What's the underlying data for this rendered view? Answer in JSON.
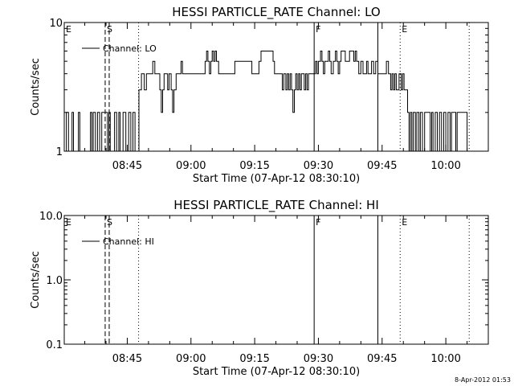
{
  "footer": {
    "timestamp": "8-Apr-2012 01:53"
  },
  "chart_data": [
    {
      "type": "line",
      "title": "HESSI PARTICLE_RATE Channel: LO",
      "xlabel": "Start Time (07-Apr-12 08:30:10)",
      "ylabel": "Counts/sec",
      "yscale": "log",
      "ylim": [
        1,
        10
      ],
      "xlim": [
        "08:30:10",
        "10:10:00"
      ],
      "y_ticks": [
        "1",
        "10"
      ],
      "x_ticks": [
        "08:45",
        "09:00",
        "09:15",
        "09:30",
        "09:45",
        "10:00"
      ],
      "legend": {
        "position": "top-left",
        "entries": [
          "Channel: LO"
        ]
      },
      "markers": [
        {
          "label": "E",
          "time": "08:30:10",
          "style": "solid"
        },
        {
          "label": "S",
          "time": "08:39:48",
          "style": "dashed"
        },
        {
          "label": "",
          "time": "08:40:45",
          "style": "dashed"
        },
        {
          "label": "",
          "time": "08:47:40",
          "style": "dotted"
        },
        {
          "label": "F",
          "time": "09:29:00",
          "style": "solid"
        },
        {
          "label": "",
          "time": "09:44:00",
          "style": "solid"
        },
        {
          "label": "E",
          "time": "09:49:15",
          "style": "dotted"
        },
        {
          "label": "",
          "time": "10:05:30",
          "style": "dotted"
        }
      ],
      "series": [
        {
          "name": "Channel: LO",
          "points": [
            [
              "08:30:10",
              1
            ],
            [
              "08:30:40",
              2
            ],
            [
              "08:31:10",
              1
            ],
            [
              "08:32:00",
              2
            ],
            [
              "08:32:20",
              1
            ],
            [
              "08:33:30",
              2
            ],
            [
              "08:33:50",
              1
            ],
            [
              "08:36:20",
              2
            ],
            [
              "08:36:40",
              1
            ],
            [
              "08:37:00",
              2
            ],
            [
              "08:37:30",
              1
            ],
            [
              "08:38:00",
              2
            ],
            [
              "08:38:30",
              1
            ],
            [
              "08:39:00",
              2
            ],
            [
              "08:40:00",
              2
            ],
            [
              "08:40:20",
              1
            ],
            [
              "08:40:40",
              2
            ],
            [
              "08:41:00",
              1
            ],
            [
              "08:41:40",
              1
            ],
            [
              "08:42:00",
              2
            ],
            [
              "08:42:30",
              1
            ],
            [
              "08:43:00",
              2
            ],
            [
              "08:43:20",
              1
            ],
            [
              "08:44:00",
              2
            ],
            [
              "08:44:40",
              1
            ],
            [
              "08:45:20",
              2
            ],
            [
              "08:45:50",
              1
            ],
            [
              "08:46:20",
              2
            ],
            [
              "08:46:50",
              1
            ],
            [
              "08:47:40",
              1
            ],
            [
              "08:47:45",
              3
            ],
            [
              "08:48:10",
              3
            ],
            [
              "08:48:20",
              4
            ],
            [
              "08:48:50",
              4
            ],
            [
              "08:49:00",
              3
            ],
            [
              "08:49:30",
              4
            ],
            [
              "08:50:30",
              4
            ],
            [
              "08:51:00",
              5
            ],
            [
              "08:51:30",
              4
            ],
            [
              "08:52:20",
              4
            ],
            [
              "08:52:40",
              3
            ],
            [
              "08:53:00",
              2
            ],
            [
              "08:53:20",
              3
            ],
            [
              "08:53:40",
              4
            ],
            [
              "08:54:30",
              3
            ],
            [
              "08:54:50",
              4
            ],
            [
              "08:55:20",
              3
            ],
            [
              "08:55:40",
              2
            ],
            [
              "08:56:00",
              3
            ],
            [
              "08:56:30",
              4
            ],
            [
              "08:57:20",
              4
            ],
            [
              "08:57:40",
              5
            ],
            [
              "08:58:00",
              4
            ],
            [
              "08:58:20",
              4
            ],
            [
              "08:59:30",
              4
            ],
            [
              "09:00:00",
              4
            ],
            [
              "09:03:00",
              4
            ],
            [
              "09:03:20",
              5
            ],
            [
              "09:03:40",
              6
            ],
            [
              "09:04:00",
              5
            ],
            [
              "09:04:20",
              4
            ],
            [
              "09:04:40",
              5
            ],
            [
              "09:05:00",
              6
            ],
            [
              "09:05:20",
              5
            ],
            [
              "09:05:40",
              6
            ],
            [
              "09:06:00",
              5
            ],
            [
              "09:06:30",
              4
            ],
            [
              "09:10:00",
              4
            ],
            [
              "09:10:20",
              5
            ],
            [
              "09:14:00",
              5
            ],
            [
              "09:14:20",
              4
            ],
            [
              "09:15:30",
              4
            ],
            [
              "09:16:00",
              5
            ],
            [
              "09:16:30",
              6
            ],
            [
              "09:19:00",
              6
            ],
            [
              "09:19:20",
              5
            ],
            [
              "09:19:40",
              4
            ],
            [
              "09:21:00",
              4
            ],
            [
              "09:21:30",
              3
            ],
            [
              "09:21:50",
              4
            ],
            [
              "09:22:20",
              3
            ],
            [
              "09:22:40",
              4
            ],
            [
              "09:23:00",
              3
            ],
            [
              "09:23:20",
              4
            ],
            [
              "09:23:40",
              3
            ],
            [
              "09:24:00",
              2
            ],
            [
              "09:24:20",
              3
            ],
            [
              "09:24:40",
              4
            ],
            [
              "09:25:00",
              3
            ],
            [
              "09:25:20",
              4
            ],
            [
              "09:25:40",
              3
            ],
            [
              "09:26:00",
              4
            ],
            [
              "09:26:20",
              4
            ],
            [
              "09:26:40",
              3
            ],
            [
              "09:27:00",
              4
            ],
            [
              "09:27:20",
              3
            ],
            [
              "09:27:40",
              4
            ],
            [
              "09:28:30",
              4
            ],
            [
              "09:29:00",
              4
            ],
            [
              "09:29:20",
              5
            ],
            [
              "09:29:40",
              4
            ],
            [
              "09:30:00",
              5
            ],
            [
              "09:30:30",
              6
            ],
            [
              "09:30:50",
              5
            ],
            [
              "09:31:10",
              4
            ],
            [
              "09:31:30",
              5
            ],
            [
              "09:32:00",
              5
            ],
            [
              "09:32:20",
              6
            ],
            [
              "09:32:40",
              5
            ],
            [
              "09:33:00",
              4
            ],
            [
              "09:33:30",
              5
            ],
            [
              "09:34:00",
              6
            ],
            [
              "09:34:20",
              5
            ],
            [
              "09:34:40",
              4
            ],
            [
              "09:35:00",
              5
            ],
            [
              "09:35:20",
              6
            ],
            [
              "09:36:00",
              6
            ],
            [
              "09:36:20",
              5
            ],
            [
              "09:37:00",
              5
            ],
            [
              "09:37:20",
              6
            ],
            [
              "09:38:00",
              6
            ],
            [
              "09:38:20",
              5
            ],
            [
              "09:38:40",
              6
            ],
            [
              "09:39:00",
              5
            ],
            [
              "09:39:30",
              4
            ],
            [
              "09:40:00",
              5
            ],
            [
              "09:40:30",
              4
            ],
            [
              "09:41:00",
              4
            ],
            [
              "09:41:20",
              5
            ],
            [
              "09:41:40",
              4
            ],
            [
              "09:42:00",
              4
            ],
            [
              "09:42:30",
              5
            ],
            [
              "09:43:00",
              4
            ],
            [
              "09:43:30",
              5
            ],
            [
              "09:44:00",
              4
            ],
            [
              "09:45:30",
              4
            ],
            [
              "09:46:00",
              5
            ],
            [
              "09:46:30",
              4
            ],
            [
              "09:47:00",
              3
            ],
            [
              "09:47:20",
              4
            ],
            [
              "09:47:40",
              3
            ],
            [
              "09:48:00",
              4
            ],
            [
              "09:48:20",
              3
            ],
            [
              "09:49:00",
              4
            ],
            [
              "09:49:30",
              3
            ],
            [
              "09:49:50",
              4
            ],
            [
              "09:50:10",
              3
            ],
            [
              "09:50:40",
              3
            ],
            [
              "09:51:00",
              2
            ],
            [
              "09:51:20",
              1
            ],
            [
              "09:51:40",
              2
            ],
            [
              "09:52:00",
              1
            ],
            [
              "09:52:20",
              2
            ],
            [
              "09:52:50",
              1
            ],
            [
              "09:53:10",
              2
            ],
            [
              "09:53:40",
              1
            ],
            [
              "09:54:00",
              2
            ],
            [
              "09:54:30",
              1
            ],
            [
              "09:55:00",
              2
            ],
            [
              "09:56:00",
              2
            ],
            [
              "09:56:20",
              1
            ],
            [
              "09:56:40",
              2
            ],
            [
              "09:57:00",
              1
            ],
            [
              "09:57:30",
              2
            ],
            [
              "09:58:00",
              1
            ],
            [
              "09:58:30",
              2
            ],
            [
              "09:59:00",
              1
            ],
            [
              "09:59:30",
              2
            ],
            [
              "10:00:00",
              1
            ],
            [
              "10:00:30",
              2
            ],
            [
              "10:01:00",
              1
            ],
            [
              "10:01:20",
              2
            ],
            [
              "10:02:00",
              2
            ],
            [
              "10:02:20",
              1
            ],
            [
              "10:02:40",
              2
            ],
            [
              "10:04:00",
              2
            ],
            [
              "10:04:30",
              2
            ],
            [
              "10:05:00",
              1
            ]
          ]
        }
      ]
    },
    {
      "type": "line",
      "title": "HESSI PARTICLE_RATE Channel: HI",
      "xlabel": "Start Time (07-Apr-12 08:30:10)",
      "ylabel": "Counts/sec",
      "yscale": "log",
      "ylim": [
        0.1,
        10
      ],
      "xlim": [
        "08:30:10",
        "10:10:00"
      ],
      "y_ticks": [
        "0.1",
        "1.0",
        "10.0"
      ],
      "x_ticks": [
        "08:45",
        "09:00",
        "09:15",
        "09:30",
        "09:45",
        "10:00"
      ],
      "legend": {
        "position": "top-left",
        "entries": [
          "Channel: HI"
        ]
      },
      "markers": [
        {
          "label": "E",
          "time": "08:30:10",
          "style": "solid"
        },
        {
          "label": "S",
          "time": "08:39:48",
          "style": "dashed"
        },
        {
          "label": "",
          "time": "08:40:45",
          "style": "dashed"
        },
        {
          "label": "",
          "time": "08:47:40",
          "style": "dotted"
        },
        {
          "label": "F",
          "time": "09:29:00",
          "style": "solid"
        },
        {
          "label": "",
          "time": "09:44:00",
          "style": "solid"
        },
        {
          "label": "E",
          "time": "09:49:15",
          "style": "dotted"
        },
        {
          "label": "",
          "time": "10:05:30",
          "style": "dotted"
        }
      ],
      "series": [
        {
          "name": "Channel: HI",
          "points": []
        }
      ]
    }
  ]
}
